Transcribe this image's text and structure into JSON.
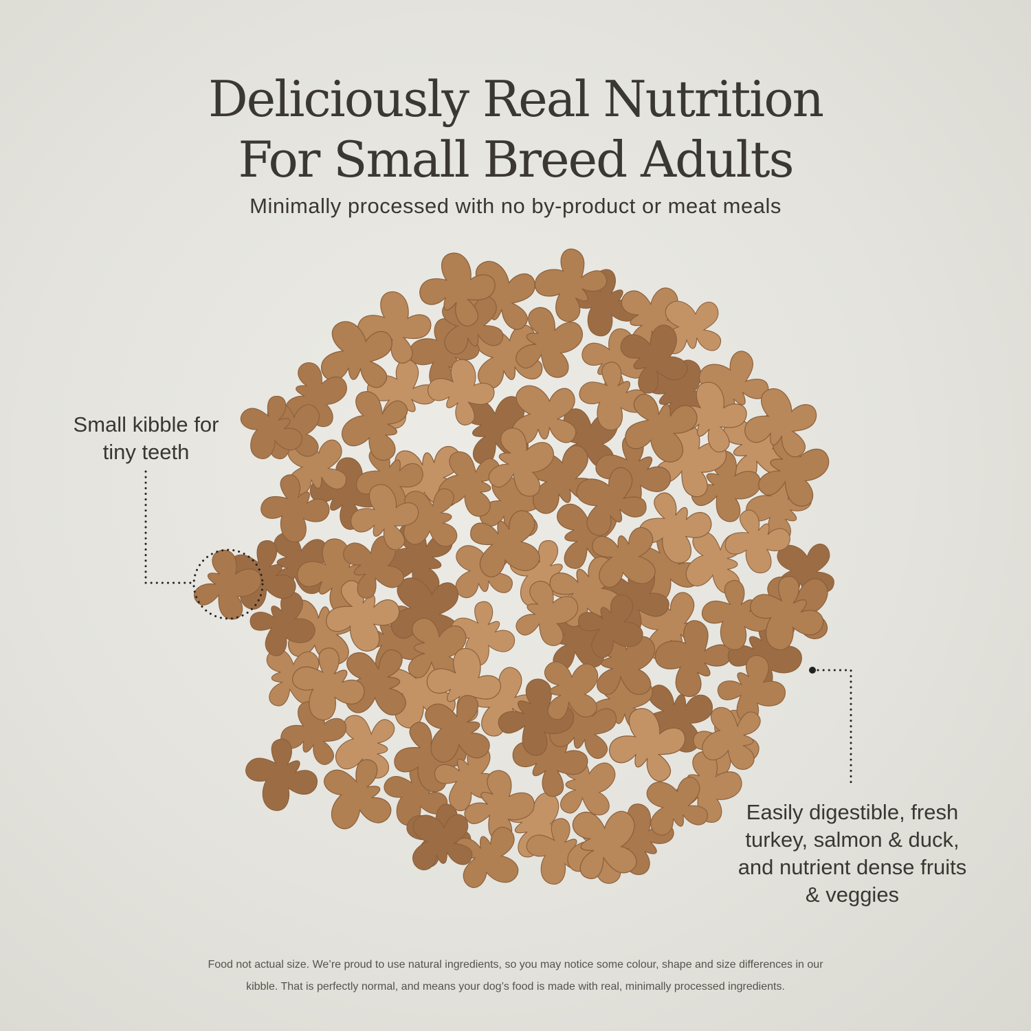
{
  "heading": {
    "line1": "Deliciously Real Nutrition",
    "line2": "For Small Breed Adults"
  },
  "subtitle": "Minimally processed with no by-product or meat meals",
  "callouts": [
    {
      "line1": "Small kibble for",
      "line2": "tiny teeth"
    },
    {
      "lines": [
        "Easily digestible, fresh",
        "turkey, salmon & duck,",
        "and nutrient dense fruits",
        "& veggies"
      ]
    }
  ],
  "footnote": {
    "line1": "Food not actual size. We’re proud to use natural ingredients, so you may notice some colour, shape and size differences in our",
    "line2": "kibble. That is perfectly normal, and means your dog’s food is made with real, minimally processed ingredients."
  },
  "colors": {
    "background": "#e6e5df",
    "kibble": "#b8875a",
    "text": "#3a3733"
  }
}
